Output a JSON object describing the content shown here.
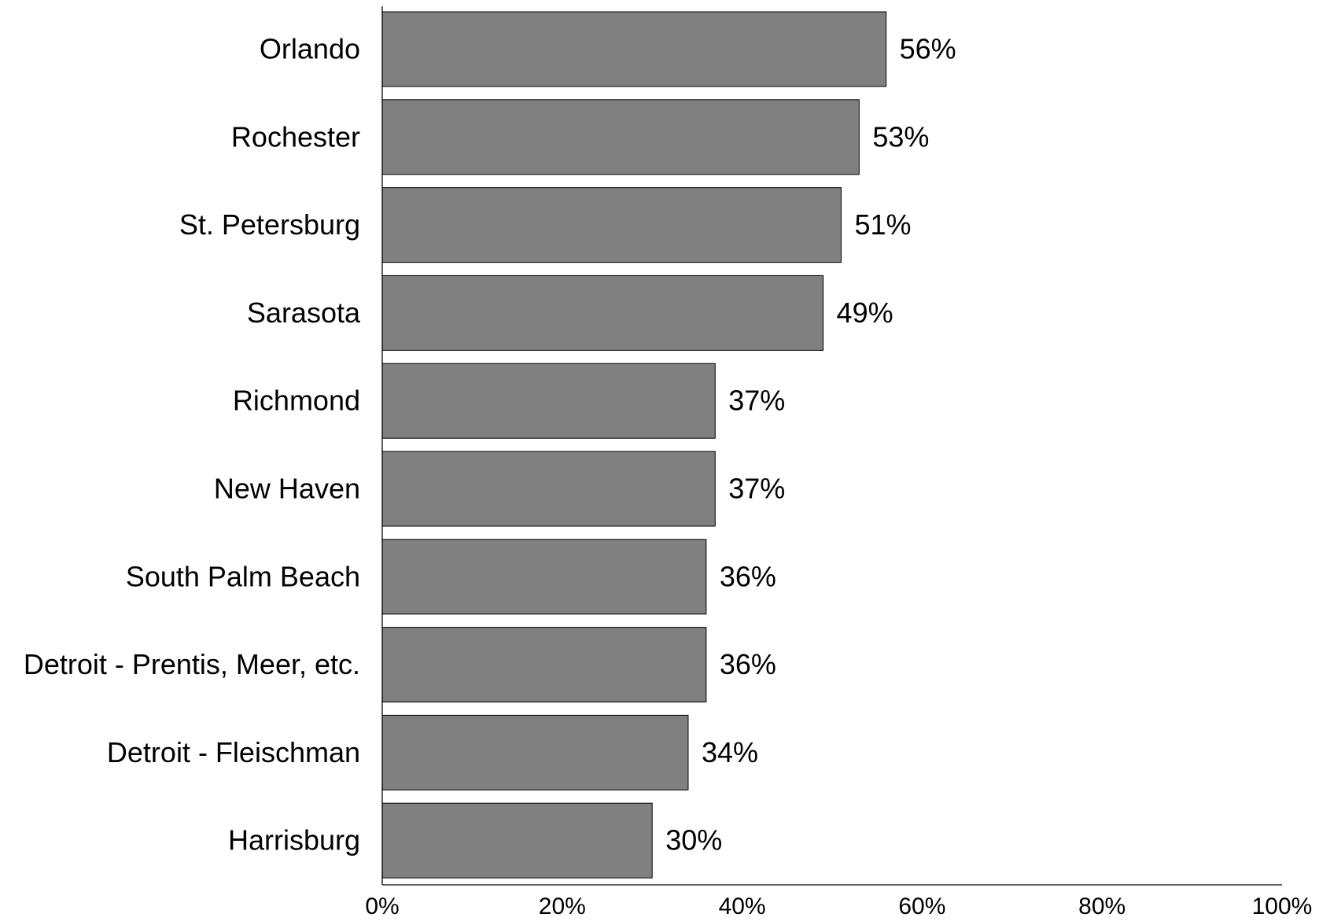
{
  "chart_data": {
    "type": "bar",
    "orientation": "horizontal",
    "categories": [
      "Orlando",
      "Rochester",
      "St. Petersburg",
      "Sarasota",
      "Richmond",
      "New Haven",
      "South Palm Beach",
      "Detroit - Prentis, Meer, etc.",
      "Detroit - Fleischman",
      "Harrisburg"
    ],
    "values": [
      56,
      53,
      51,
      49,
      37,
      37,
      36,
      36,
      34,
      30
    ],
    "value_labels": [
      "56%",
      "53%",
      "51%",
      "49%",
      "37%",
      "37%",
      "36%",
      "36%",
      "34%",
      "30%"
    ],
    "xlim": [
      0,
      100
    ],
    "x_ticks": [
      0,
      20,
      40,
      60,
      80,
      100
    ],
    "x_tick_labels": [
      "0%",
      "20%",
      "40%",
      "60%",
      "80%",
      "100%"
    ],
    "title": "",
    "xlabel": "",
    "ylabel": "",
    "grid": false,
    "legend": "none",
    "bar_color": "#808080"
  }
}
